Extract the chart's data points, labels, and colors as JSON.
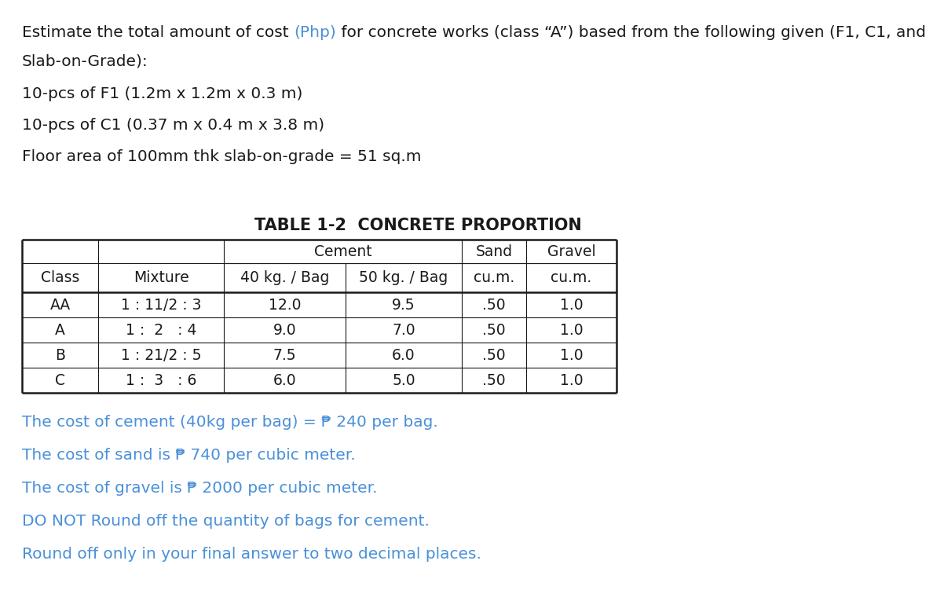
{
  "bg_color": "#ffffff",
  "text_color": "#1a1a1a",
  "blue_color": "#4a90d9",
  "font_size_body": 14.5,
  "font_size_table": 13.5,
  "font_size_table_title": 15.0,
  "title_parts": [
    {
      "text": "Estimate the total amount of cost ",
      "color": "black"
    },
    {
      "text": "(Php)",
      "color": "blue"
    },
    {
      "text": " for concrete works (class “A”) based from the following given (F1, C1, and",
      "color": "black"
    }
  ],
  "title_line2": "Slab-on-Grade):",
  "given_items": [
    "10-pcs of F1 (1.2m x 1.2m x 0.3 m)",
    "10-pcs of C1 (0.37 m x 0.4 m x 3.8 m)",
    "Floor area of 100mm thk slab-on-grade = 51 sq.m"
  ],
  "table_title": "TABLE 1-2  CONCRETE PROPORTION",
  "table_data": [
    [
      "AA",
      "1 : 11/2 : 3",
      "12.0",
      "9.5",
      ".50",
      "1.0"
    ],
    [
      "A",
      "1 :  2   : 4",
      "9.0",
      "7.0",
      ".50",
      "1.0"
    ],
    [
      "B",
      "1 : 21/2 : 5",
      "7.5",
      "6.0",
      ".50",
      "1.0"
    ],
    [
      "C",
      "1 :  3   : 6",
      "6.0",
      "5.0",
      ".50",
      "1.0"
    ]
  ],
  "cost_lines": [
    "The cost of cement (40kg per bag) = ₱ 240 per bag.",
    "The cost of sand is ₱ 740 per cubic meter.",
    "The cost of gravel is ₱ 2000 per cubic meter.",
    "DO NOT Round off the quantity of bags for cement.",
    "Round off only in your final answer to two decimal places."
  ]
}
